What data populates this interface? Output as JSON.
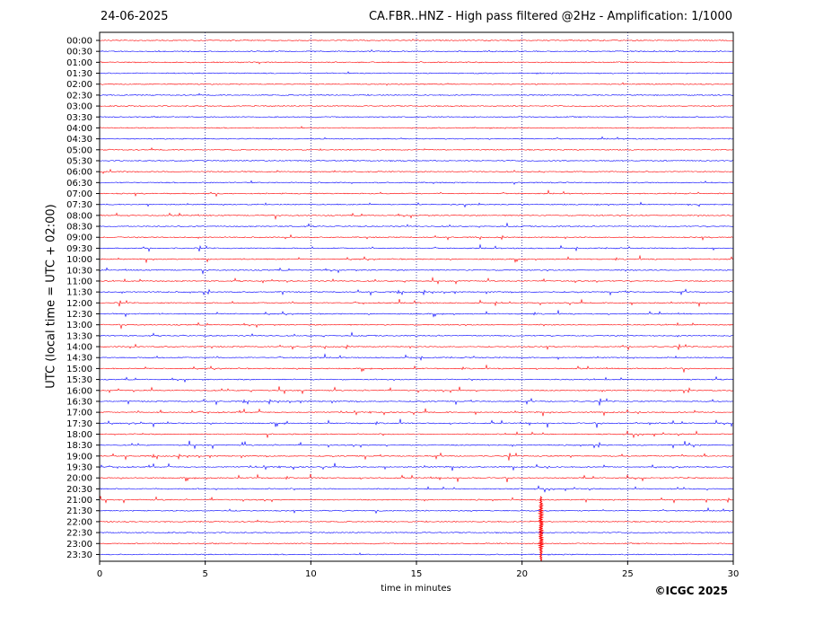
{
  "header": {
    "date": "24-06-2025",
    "title": "CA.FBR..HNZ - High pass filtered @2Hz - Amplification: 1/1000"
  },
  "footer": {
    "copyright": "©ICGC 2025"
  },
  "chart_data": {
    "type": "line",
    "title": "CA.FBR..HNZ - High pass filtered @2Hz - Amplification: 1/1000",
    "xlabel": "time in minutes",
    "ylabel": "UTC (local time = UTC + 02:00)",
    "xlim": [
      0,
      30
    ],
    "xticks": [
      0,
      5,
      10,
      15,
      20,
      25,
      30
    ],
    "grid": "vertical dotted at 5-minute intervals",
    "colors": [
      "#ff0000",
      "#0000ff"
    ],
    "rows": [
      "00:00",
      "00:30",
      "01:00",
      "01:30",
      "02:00",
      "02:30",
      "03:00",
      "03:30",
      "04:00",
      "04:30",
      "05:00",
      "05:30",
      "06:00",
      "06:30",
      "07:00",
      "07:30",
      "08:00",
      "08:30",
      "09:00",
      "09:30",
      "10:00",
      "10:30",
      "11:00",
      "11:30",
      "12:00",
      "12:30",
      "13:00",
      "13:30",
      "14:00",
      "14:30",
      "15:00",
      "15:30",
      "16:00",
      "16:30",
      "17:00",
      "17:30",
      "18:00",
      "18:30",
      "19:00",
      "19:30",
      "20:00",
      "20:30",
      "21:00",
      "21:30",
      "22:00",
      "22:30",
      "23:00",
      "23:30"
    ],
    "row_activity": [
      0.1,
      0.1,
      0.1,
      0.1,
      0.1,
      0.1,
      0.1,
      0.1,
      0.1,
      0.2,
      0.2,
      0.2,
      0.4,
      0.3,
      0.5,
      0.6,
      0.7,
      0.6,
      0.6,
      0.6,
      0.7,
      0.7,
      0.7,
      0.9,
      0.7,
      0.7,
      0.7,
      0.6,
      0.6,
      0.6,
      0.7,
      0.7,
      0.9,
      0.9,
      0.9,
      1.0,
      0.9,
      1.0,
      1.0,
      0.9,
      0.9,
      0.8,
      0.8,
      0.4,
      0.1,
      0.1,
      0.1,
      0.1
    ],
    "event": {
      "minute": 20.9,
      "row_start": "21:00",
      "row_end": "23:30"
    }
  }
}
